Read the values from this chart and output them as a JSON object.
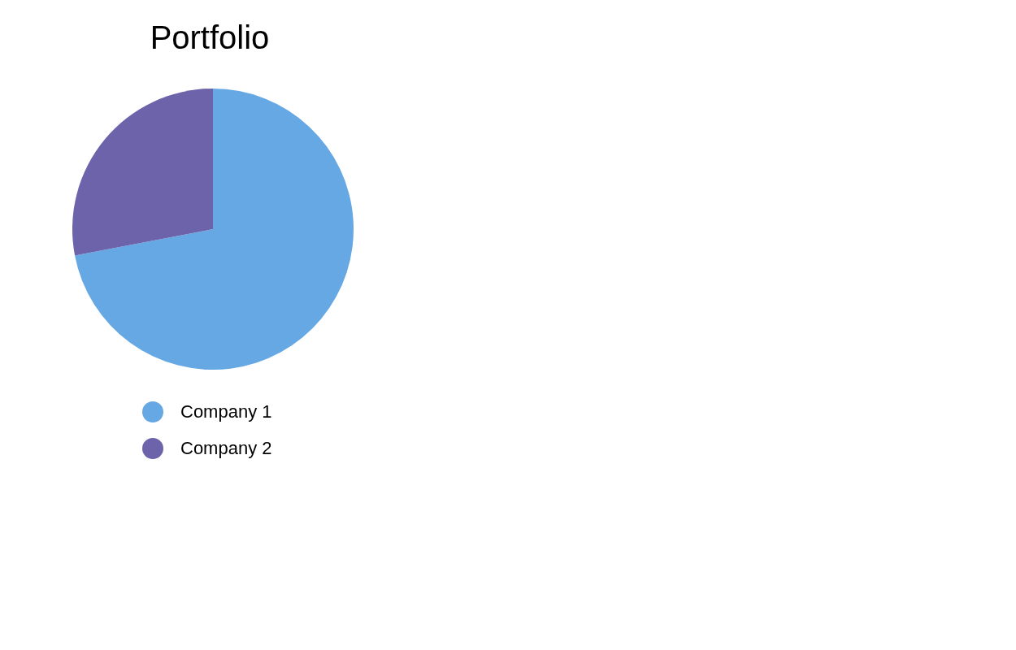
{
  "chart_data": {
    "type": "pie",
    "title": "Portfolio",
    "categories": [
      "Company 1",
      "Company 2"
    ],
    "values": [
      72,
      28
    ],
    "colors": [
      "#65a8e4",
      "#6c63ab"
    ],
    "legend": "bottom"
  }
}
